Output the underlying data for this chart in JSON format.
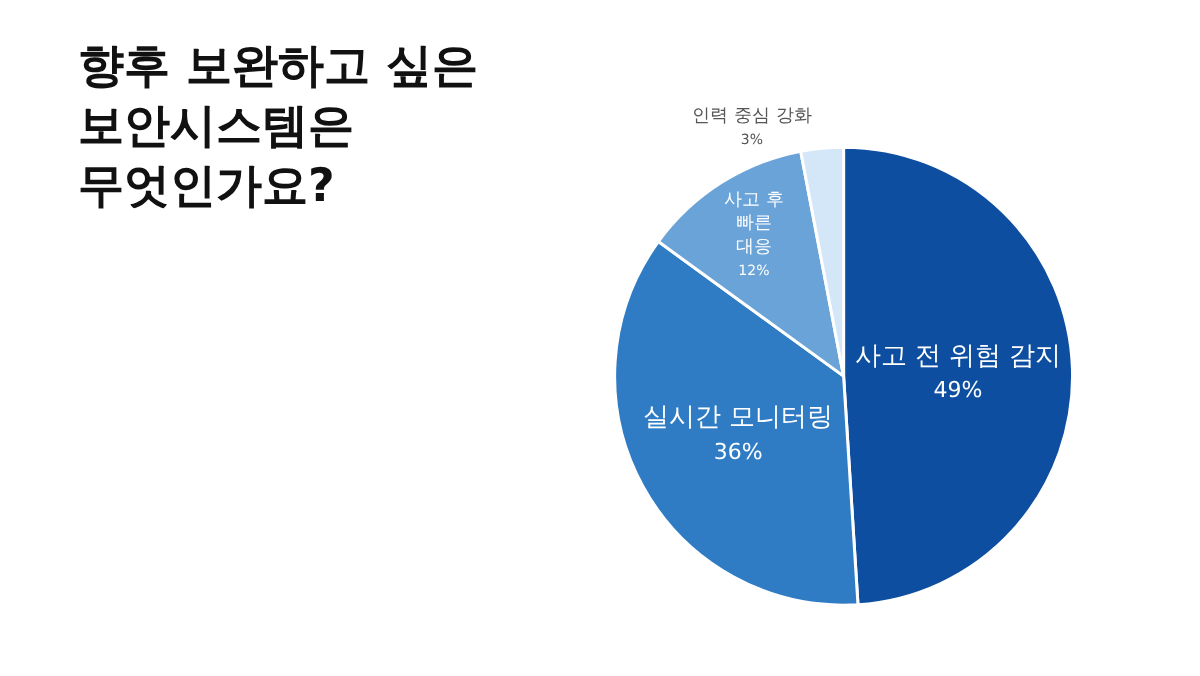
{
  "chart_data": {
    "type": "pie",
    "title": "향후 보완하고 싶은 보안시스템은 무엇인가요?",
    "categories": [
      "사고 전 위험 감지",
      "실시간 모니터링",
      "사고 후 빠른 대응",
      "인력 중심 강화"
    ],
    "values": [
      49,
      36,
      12,
      3
    ],
    "value_labels": [
      "49%",
      "36%",
      "12%",
      "3%"
    ],
    "colors": [
      "#0d4ea0",
      "#2f7cc4",
      "#6aa3d8",
      "#d4e7f8"
    ],
    "legend": false
  }
}
